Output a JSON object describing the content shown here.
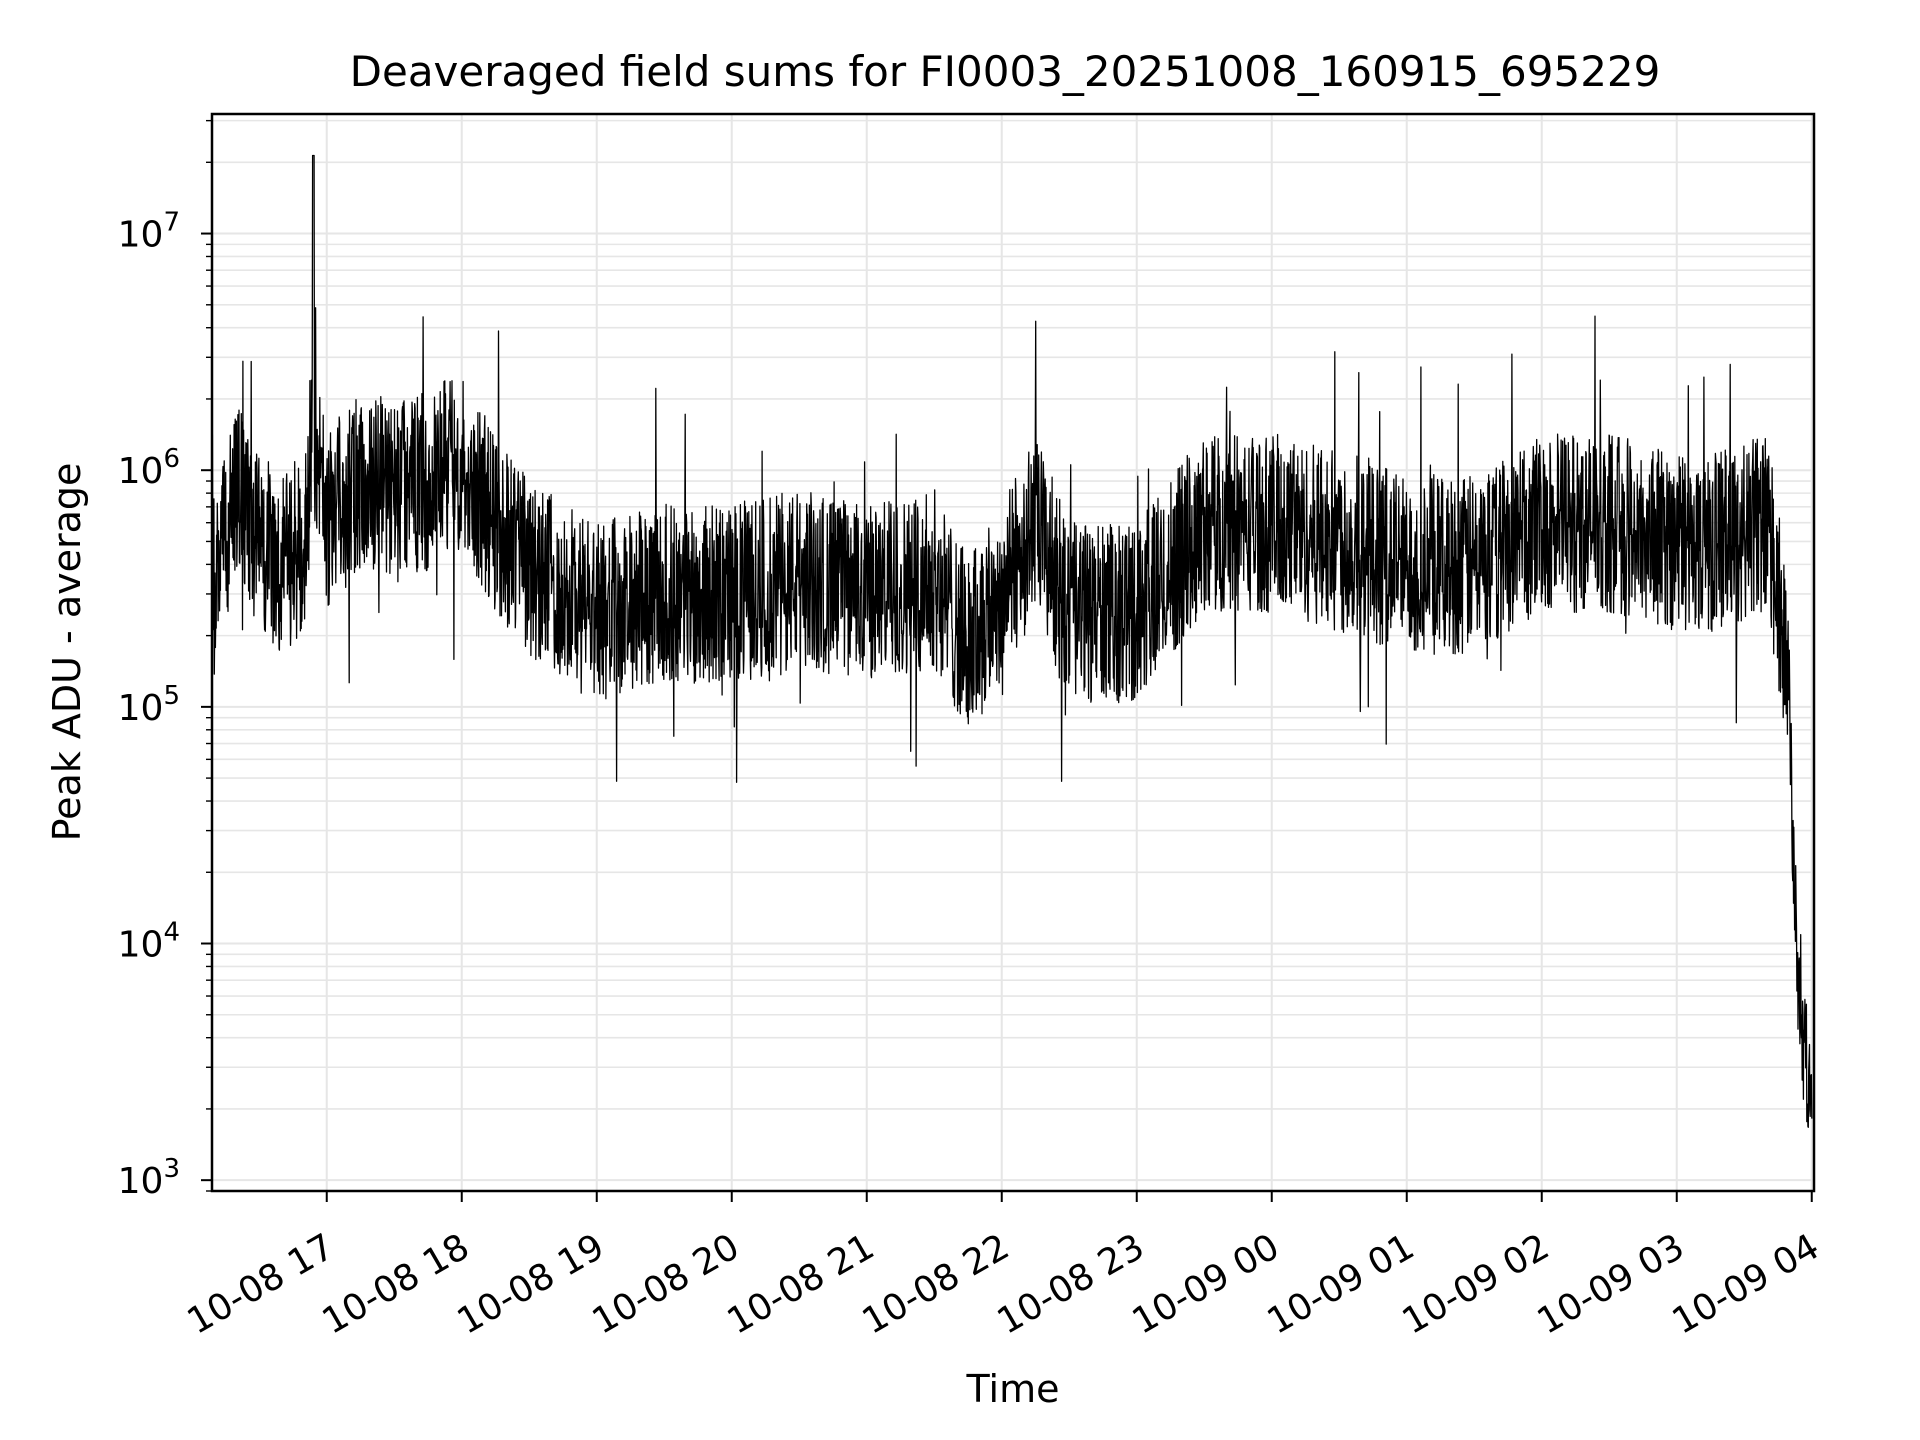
{
  "chart_data": {
    "type": "line",
    "title": "Deaveraged field sums for FI0003_20251008_160915_695229",
    "xlabel": "Time",
    "ylabel": "Peak ADU - average",
    "yscale": "log",
    "ylim": [
      900,
      32000000
    ],
    "xlim": [
      "2025-10-08 16:09:15",
      "2025-10-09 04:01:40"
    ],
    "grid": true,
    "line_color": "#000000",
    "grid_color": "#e6e6e6",
    "x_ticks": [
      {
        "label": "10-08 17",
        "time": "2025-10-08 17:00"
      },
      {
        "label": "10-08 18",
        "time": "2025-10-08 18:00"
      },
      {
        "label": "10-08 19",
        "time": "2025-10-08 19:00"
      },
      {
        "label": "10-08 20",
        "time": "2025-10-08 20:00"
      },
      {
        "label": "10-08 21",
        "time": "2025-10-08 21:00"
      },
      {
        "label": "10-08 22",
        "time": "2025-10-08 22:00"
      },
      {
        "label": "10-08 23",
        "time": "2025-10-08 23:00"
      },
      {
        "label": "10-09 00",
        "time": "2025-10-09 00:00"
      },
      {
        "label": "10-09 01",
        "time": "2025-10-09 01:00"
      },
      {
        "label": "10-09 02",
        "time": "2025-10-09 02:00"
      },
      {
        "label": "10-09 03",
        "time": "2025-10-09 03:00"
      },
      {
        "label": "10-09 04",
        "time": "2025-10-09 04:00"
      }
    ],
    "y_ticks": [
      {
        "base": "10",
        "exp": "3",
        "value": 1000
      },
      {
        "base": "10",
        "exp": "4",
        "value": 10000
      },
      {
        "base": "10",
        "exp": "5",
        "value": 100000
      },
      {
        "base": "10",
        "exp": "6",
        "value": 1000000
      },
      {
        "base": "10",
        "exp": "7",
        "value": 10000000
      }
    ],
    "series": [
      {
        "x": [
          "2025-10-08 16:09",
          "2025-10-08 16:20",
          "2025-10-08 16:30",
          "2025-10-08 16:40",
          "2025-10-08 16:50",
          "2025-10-08 16:54",
          "2025-10-08 17:00",
          "2025-10-08 17:10",
          "2025-10-08 17:20",
          "2025-10-08 17:30",
          "2025-10-08 17:45",
          "2025-10-08 18:00",
          "2025-10-08 18:15",
          "2025-10-08 18:30",
          "2025-10-08 18:45",
          "2025-10-08 19:00",
          "2025-10-08 19:30",
          "2025-10-08 20:00",
          "2025-10-08 20:30",
          "2025-10-08 21:00",
          "2025-10-08 21:30",
          "2025-10-08 21:45",
          "2025-10-08 22:00",
          "2025-10-08 22:15",
          "2025-10-08 22:30",
          "2025-10-08 22:45",
          "2025-10-08 23:00",
          "2025-10-08 23:30",
          "2025-10-09 00:00",
          "2025-10-09 00:30",
          "2025-10-09 01:00",
          "2025-10-09 01:30",
          "2025-10-09 02:00",
          "2025-10-09 02:30",
          "2025-10-09 03:00",
          "2025-10-09 03:20",
          "2025-10-09 03:40",
          "2025-10-09 03:45",
          "2025-10-09 03:50",
          "2025-10-09 03:52",
          "2025-10-09 03:55",
          "2025-10-09 04:00"
        ],
        "y": [
          300000,
          800000,
          500000,
          400000,
          500000,
          1500000,
          600000,
          800000,
          900000,
          800000,
          900000,
          1100000,
          600000,
          400000,
          300000,
          250000,
          300000,
          300000,
          350000,
          300000,
          350000,
          180000,
          300000,
          600000,
          250000,
          250000,
          250000,
          600000,
          600000,
          500000,
          400000,
          400000,
          600000,
          600000,
          500000,
          500000,
          600000,
          300000,
          100000,
          20000,
          4000,
          2500
        ]
      }
    ]
  }
}
